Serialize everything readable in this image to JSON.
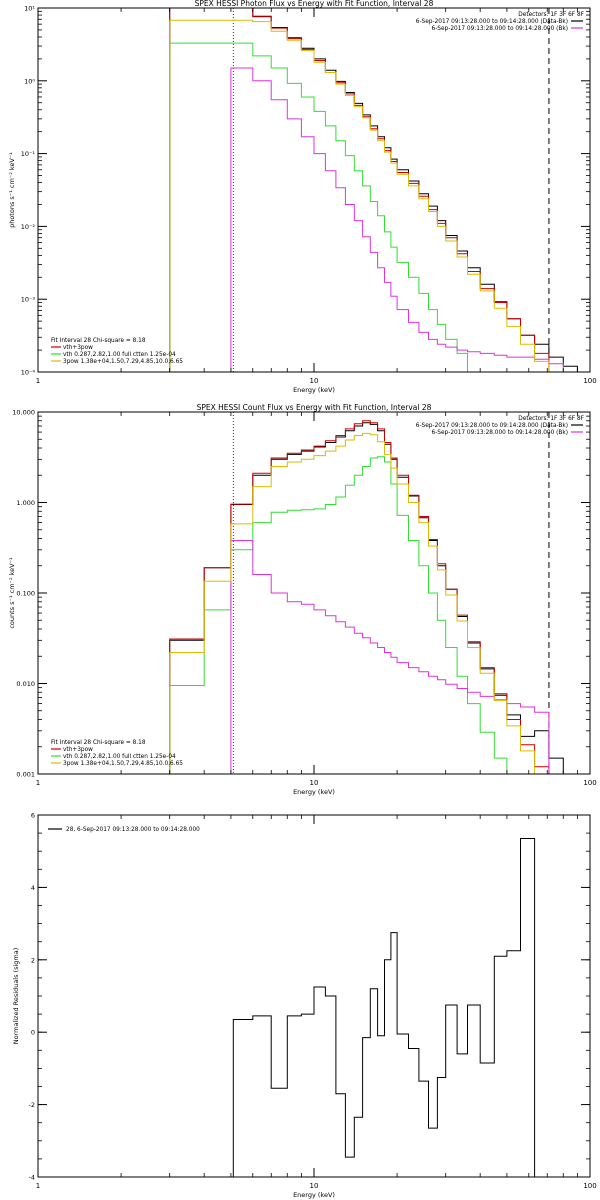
{
  "chart_data": [
    {
      "type": "line",
      "title": "SPEX HESSI Photon Flux vs Energy with Fit Function, Interval 28",
      "xlabel": "Energy (keV)",
      "ylabel": "photons s⁻¹ cm⁻² keV⁻¹",
      "xscale": "log",
      "yscale": "log",
      "xlim": [
        1,
        100
      ],
      "ylim": [
        0.0001,
        10
      ],
      "xticks": [
        1,
        10,
        100
      ],
      "xtick_labels": [
        "1",
        "10",
        "100"
      ],
      "yticks": [
        0.0001,
        0.001,
        0.01,
        0.1,
        1,
        10
      ],
      "ytick_labels": [
        "10⁻⁴",
        "10⁻³",
        "10⁻²",
        "10⁻¹",
        "10⁰",
        "10¹"
      ],
      "legend_topright": [
        "Detectors: 1F 3F 6F 8F",
        "6-Sep-2017 09:13:28.000 to 09:14:28.000 (Data-Bk)",
        "6-Sep-2017 09:13:28.000 to 09:14:28.000 (Bk)"
      ],
      "legend_bottomleft": [
        "Fit Interval 28   Chi-square = 8.18",
        "vth+3pow",
        "vth 0.287,2.82,1.00  full ctten 1.25e-04",
        "3pow 1.38e+04,1.50,7.29,4.85,10.0,6.65"
      ],
      "edges": [
        3,
        5,
        6,
        7,
        8,
        9,
        10,
        11,
        12,
        13,
        14,
        15,
        16,
        17,
        18,
        19,
        20,
        22,
        24,
        26,
        28,
        30,
        33,
        36,
        40,
        45,
        50,
        56,
        63,
        71,
        80,
        90
      ],
      "vlines": [
        {
          "x": 5.1,
          "style": "dotted"
        },
        {
          "x": 71,
          "style": "dashed"
        }
      ],
      "series": [
        {
          "color": "#000000",
          "values": [
            10,
            10,
            7.7,
            5.4,
            3.9,
            2.8,
            2.0,
            1.4,
            0.98,
            0.69,
            0.49,
            0.34,
            0.24,
            0.17,
            0.12,
            0.084,
            0.06,
            0.042,
            0.028,
            0.019,
            0.012,
            0.0075,
            0.0046,
            0.0027,
            0.0016,
            0.00092,
            0.00054,
            0.00032,
            0.00024,
            0.00016,
            0.00012
          ]
        },
        {
          "color": "#cc0000",
          "values": [
            10,
            10,
            7.6,
            5.3,
            3.8,
            2.7,
            1.9,
            1.3,
            0.94,
            0.66,
            0.46,
            0.32,
            0.22,
            0.16,
            0.11,
            0.078,
            0.055,
            0.039,
            0.026,
            0.017,
            0.011,
            0.007,
            0.0042,
            0.0024,
            0.0014,
            0.0009,
            0.00054,
            0.00032,
            0.00018,
            0.0001,
            0.0001
          ]
        },
        {
          "color": "#33dd33",
          "values": [
            3.3,
            3.3,
            2.2,
            1.5,
            0.92,
            0.6,
            0.38,
            0.24,
            0.15,
            0.094,
            0.058,
            0.036,
            0.022,
            0.014,
            0.0084,
            0.0052,
            0.0032,
            0.002,
            0.0012,
            0.00072,
            0.00045,
            0.00028,
            0.00018,
            0.0001,
            0.0001,
            0.0001,
            0.0001,
            0.0001,
            0.0001,
            0.0001,
            0.0001
          ]
        },
        {
          "color": "#dd33dd",
          "values": [
            0.0001,
            1.5,
            1.0,
            0.55,
            0.3,
            0.17,
            0.1,
            0.058,
            0.034,
            0.02,
            0.012,
            0.0072,
            0.0044,
            0.0027,
            0.0017,
            0.0011,
            0.00072,
            0.00048,
            0.00035,
            0.00028,
            0.00024,
            0.00022,
            0.0002,
            0.00019,
            0.00018,
            0.00017,
            0.00016,
            0.00016,
            0.00015,
            0.00013,
            0.0001
          ]
        },
        {
          "color": "#ddbb00",
          "values": [
            6.8,
            6.8,
            6.5,
            4.8,
            3.6,
            2.6,
            1.8,
            1.3,
            0.9,
            0.63,
            0.44,
            0.31,
            0.21,
            0.15,
            0.105,
            0.074,
            0.052,
            0.036,
            0.024,
            0.016,
            0.01,
            0.0063,
            0.0038,
            0.0022,
            0.0013,
            0.00075,
            0.00042,
            0.00024,
            0.00014,
            0.0001,
            0.0001
          ]
        }
      ]
    },
    {
      "type": "line",
      "title": "SPEX HESSI Count Flux vs Energy with Fit Function, Interval 28",
      "xlabel": "Energy (keV)",
      "ylabel": "counts s⁻¹ cm⁻² keV⁻¹",
      "xscale": "log",
      "yscale": "log",
      "xlim": [
        1,
        100
      ],
      "ylim": [
        0.001,
        10
      ],
      "xticks": [
        1,
        10,
        100
      ],
      "xtick_labels": [
        "1",
        "10",
        "100"
      ],
      "yticks": [
        0.001,
        0.01,
        0.1,
        1,
        10
      ],
      "ytick_labels": [
        "0.001",
        "0.010",
        "0.100",
        "1.000",
        "10.000"
      ],
      "legend_topright": [
        "Detectors: 1F 3F 6F 8F",
        "6-Sep-2017 09:13:28.000 to 09:14:28.000 (Data-Bk)",
        "6-Sep-2017 09:13:28.000 to 09:14:28.000 (Bk)"
      ],
      "legend_bottomleft": [
        "Fit Interval 28   Chi-square = 8.18",
        "vth+3pow",
        "vth 0.287,2.82,1.00  full ctten 1.25e-04",
        "3pow 1.38e+04,1.50,7.29,4.85,10.0,6.65"
      ],
      "edges": [
        3,
        4,
        5,
        6,
        7,
        8,
        9,
        10,
        11,
        12,
        13,
        14,
        15,
        16,
        17,
        18,
        19,
        20,
        22,
        24,
        26,
        28,
        30,
        33,
        36,
        40,
        45,
        50,
        56,
        63,
        71,
        80,
        90
      ],
      "vlines": [
        {
          "x": 5.1,
          "style": "dotted"
        },
        {
          "x": 71,
          "style": "dashed"
        }
      ],
      "series": [
        {
          "color": "#000000",
          "values": [
            0.03,
            0.19,
            0.95,
            2.0,
            3.0,
            3.4,
            3.7,
            4.1,
            4.6,
            5.3,
            6.2,
            7.0,
            7.6,
            7.3,
            6.2,
            4.4,
            3.0,
            1.9,
            1.18,
            0.68,
            0.38,
            0.2,
            0.11,
            0.055,
            0.028,
            0.0145,
            0.0074,
            0.0045,
            0.0026,
            0.003,
            0.0015,
            0.001
          ]
        },
        {
          "color": "#cc0000",
          "values": [
            0.031,
            0.19,
            0.96,
            2.1,
            3.1,
            3.5,
            3.8,
            4.2,
            4.8,
            5.5,
            6.5,
            7.4,
            8.0,
            7.6,
            6.5,
            4.6,
            3.1,
            2.0,
            1.2,
            0.7,
            0.39,
            0.21,
            0.11,
            0.057,
            0.029,
            0.015,
            0.0077,
            0.004,
            0.0021,
            0.0012,
            0.001,
            0.001
          ]
        },
        {
          "color": "#33dd33",
          "values": [
            0.0095,
            0.065,
            0.3,
            0.6,
            0.78,
            0.82,
            0.83,
            0.85,
            0.95,
            1.15,
            1.55,
            2.0,
            2.5,
            3.1,
            3.2,
            2.8,
            1.6,
            0.72,
            0.38,
            0.2,
            0.1,
            0.05,
            0.025,
            0.012,
            0.006,
            0.0029,
            0.0015,
            0.001,
            0.001,
            0.001,
            0.001,
            0.001
          ]
        },
        {
          "color": "#dd33dd",
          "values": [
            0.001,
            0.001,
            0.38,
            0.16,
            0.1,
            0.08,
            0.075,
            0.065,
            0.056,
            0.048,
            0.042,
            0.036,
            0.032,
            0.028,
            0.025,
            0.022,
            0.0195,
            0.017,
            0.015,
            0.0135,
            0.012,
            0.011,
            0.0098,
            0.0088,
            0.008,
            0.0072,
            0.0066,
            0.006,
            0.0055,
            0.0048,
            0.001,
            0.001
          ]
        },
        {
          "color": "#ddbb00",
          "values": [
            0.022,
            0.135,
            0.58,
            1.5,
            2.5,
            2.8,
            3.0,
            3.3,
            3.7,
            4.2,
            4.9,
            5.5,
            5.8,
            5.6,
            4.7,
            3.4,
            2.4,
            1.6,
            1.0,
            0.6,
            0.33,
            0.18,
            0.095,
            0.049,
            0.025,
            0.013,
            0.0065,
            0.0034,
            0.0018,
            0.001,
            0.001,
            0.001
          ]
        }
      ]
    },
    {
      "type": "line",
      "title": "",
      "xlabel": "Energy (keV)",
      "ylabel": "Normalized Residuals (sigma)",
      "xscale": "log",
      "yscale": "linear",
      "xlim": [
        1,
        100
      ],
      "ylim": [
        -4,
        6
      ],
      "xticks": [
        1,
        10,
        100
      ],
      "xtick_labels": [
        "1",
        "10",
        "100"
      ],
      "yticks": [
        -4,
        -2,
        0,
        2,
        4,
        6
      ],
      "ytick_labels": [
        "-4",
        "-2",
        "0",
        "2",
        "4",
        "6"
      ],
      "legend_topleft": [
        "28,  6-Sep-2017 09:13:28.000 to 09:14:28.000"
      ],
      "edges": [
        5.1,
        6,
        7,
        8,
        9,
        10,
        11,
        12,
        13,
        14,
        15,
        16,
        17,
        18,
        19,
        20,
        22,
        24,
        26,
        28,
        30,
        33,
        36,
        40,
        45,
        50,
        56,
        63,
        71
      ],
      "series": [
        {
          "color": "#000000",
          "values": [
            0.35,
            0.45,
            -1.55,
            0.45,
            0.5,
            1.25,
            1.0,
            -1.7,
            -3.45,
            -2.35,
            -0.15,
            1.2,
            -0.1,
            2.0,
            2.75,
            -0.05,
            -0.45,
            -1.35,
            -2.65,
            -1.25,
            0.75,
            -0.6,
            0.75,
            -0.85,
            2.1,
            2.25,
            5.35,
            -4.0
          ]
        }
      ]
    }
  ]
}
